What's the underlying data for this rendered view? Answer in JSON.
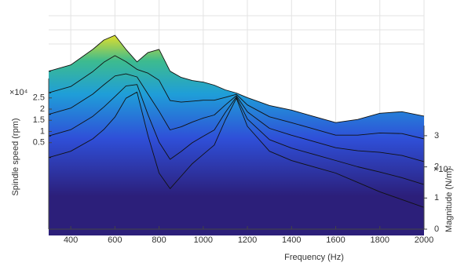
{
  "chart_data": {
    "type": "waterfall",
    "xlabel": "Frequency (Hz)",
    "ylabel": "Spindle speed (rpm)",
    "zlabel": "Magnitude (N/m)",
    "y_exponent": "×10⁴",
    "z_exponent": "×10⁷",
    "x": [
      300,
      400,
      500,
      550,
      600,
      650,
      700,
      750,
      800,
      850,
      900,
      950,
      1000,
      1050,
      1100,
      1150,
      1200,
      1300,
      1400,
      1500,
      1600,
      1700,
      1800,
      1900,
      2000
    ],
    "xlim": [
      300,
      2000
    ],
    "xticks": [
      400,
      600,
      800,
      1000,
      1200,
      1400,
      1600,
      1800,
      2000
    ],
    "ylim": [
      0,
      3
    ],
    "yticks": [
      0.5,
      1,
      1.5,
      2,
      2.5
    ],
    "zlim": [
      0,
      3.4
    ],
    "zticks": [
      0,
      1,
      2,
      3
    ],
    "grid": true,
    "series": [
      {
        "speed": 0.5,
        "values": [
          2.3,
          2.5,
          2.9,
          3.2,
          3.6,
          4.2,
          4.4,
          3.0,
          1.8,
          1.3,
          1.7,
          2.1,
          2.4,
          2.7,
          3.5,
          4.2,
          3.3,
          2.5,
          2.2,
          2.0,
          1.8,
          1.5,
          1.2,
          0.95,
          0.7
        ]
      },
      {
        "speed": 1,
        "values": [
          2.3,
          2.5,
          2.93,
          3.23,
          3.56,
          3.9,
          3.95,
          2.98,
          2.1,
          1.55,
          1.8,
          2.08,
          2.29,
          2.49,
          3.05,
          3.55,
          2.84,
          2.18,
          1.91,
          1.71,
          1.51,
          1.31,
          1.14,
          0.96,
          0.74
        ]
      },
      {
        "speed": 1.5,
        "values": [
          2.3,
          2.5,
          2.95,
          3.25,
          3.53,
          3.6,
          3.5,
          2.95,
          2.4,
          1.8,
          1.9,
          2.05,
          2.18,
          2.28,
          2.6,
          2.9,
          2.38,
          1.85,
          1.63,
          1.43,
          1.23,
          1.13,
          1.08,
          0.98,
          0.78
        ]
      },
      {
        "speed": 2,
        "values": [
          2.3,
          2.5,
          2.98,
          3.28,
          3.49,
          3.3,
          3.05,
          2.93,
          2.7,
          2.05,
          2.0,
          2.03,
          2.06,
          2.06,
          2.15,
          2.25,
          1.91,
          1.53,
          1.34,
          1.14,
          0.94,
          0.94,
          1.01,
          0.99,
          0.82
        ]
      },
      {
        "speed": 2.5,
        "values": [
          2.3,
          2.5,
          3.0,
          3.3,
          3.45,
          3.0,
          2.6,
          2.9,
          3.0,
          2.3,
          2.1,
          2.0,
          1.95,
          1.85,
          1.7,
          1.6,
          1.45,
          1.2,
          1.05,
          0.85,
          0.65,
          0.75,
          0.95,
          1.0,
          0.86
        ]
      }
    ]
  }
}
